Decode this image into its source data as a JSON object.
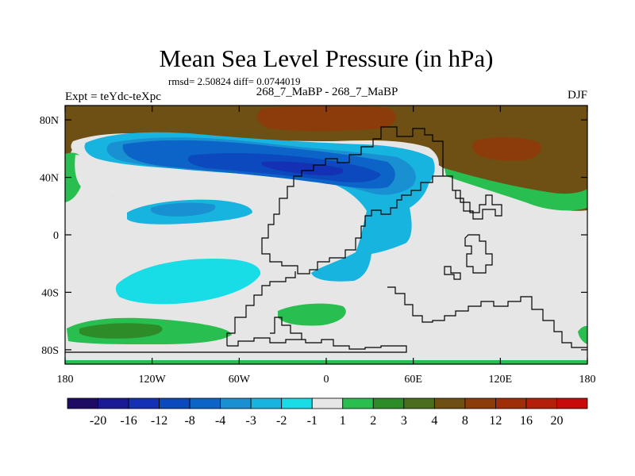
{
  "chart_data": {
    "type": "heatmap",
    "title": "Mean Sea Level Pressure (in hPa)",
    "subtitle": "rmsd= 2.50824 diff= 0.0744019",
    "left_label": "Expt = teYdc-teXpc",
    "center_label": "268_7_MaBP - 268_7_MaBP",
    "right_label": "DJF",
    "x_ticks": [
      "180",
      "120W",
      "60W",
      "0",
      "60E",
      "120E",
      "180"
    ],
    "y_ticks": [
      "80N",
      "40N",
      "0",
      "40S",
      "80S"
    ],
    "xlim": [
      -180,
      180
    ],
    "ylim": [
      -90,
      90
    ],
    "legend_position": "bottom",
    "colorbar_labels": [
      "-20",
      "-16",
      "-12",
      "-8",
      "-4",
      "-3",
      "-2",
      "-1",
      "1",
      "2",
      "3",
      "4",
      "8",
      "12",
      "16",
      "20"
    ],
    "colorbar_colors": [
      "#1e0c64",
      "#1a1a96",
      "#1430b4",
      "#0c48be",
      "#0c64c8",
      "#1890d2",
      "#18b4e0",
      "#18dce6",
      "#e6e6e6",
      "#28be50",
      "#2d8c28",
      "#4b6e1e",
      "#6e5014",
      "#8c3c0a",
      "#a02d0a",
      "#b41e0a",
      "#c80a0a"
    ],
    "regions": [
      {
        "name": "arctic-high",
        "level": "4 to 8",
        "center": [
          -30,
          75
        ]
      },
      {
        "name": "siberian-high-core",
        "level": "8 to 12",
        "center": [
          120,
          60
        ]
      },
      {
        "name": "northern-low-belt",
        "level": "-8 to -4",
        "center": [
          -60,
          48
        ]
      },
      {
        "name": "northern-low-core",
        "level": "-12 to -8",
        "center": [
          -5,
          45
        ]
      },
      {
        "name": "subtropical-low-pacific",
        "level": "-2 to -1",
        "center": [
          -120,
          20
        ]
      },
      {
        "name": "southern-low",
        "level": "-2 to -1",
        "center": [
          -100,
          -35
        ]
      },
      {
        "name": "southern-high-west",
        "level": "1 to 2",
        "center": [
          -140,
          -65
        ]
      },
      {
        "name": "southern-high-mid",
        "level": "1 to 2",
        "center": [
          -30,
          -55
        ]
      }
    ]
  }
}
